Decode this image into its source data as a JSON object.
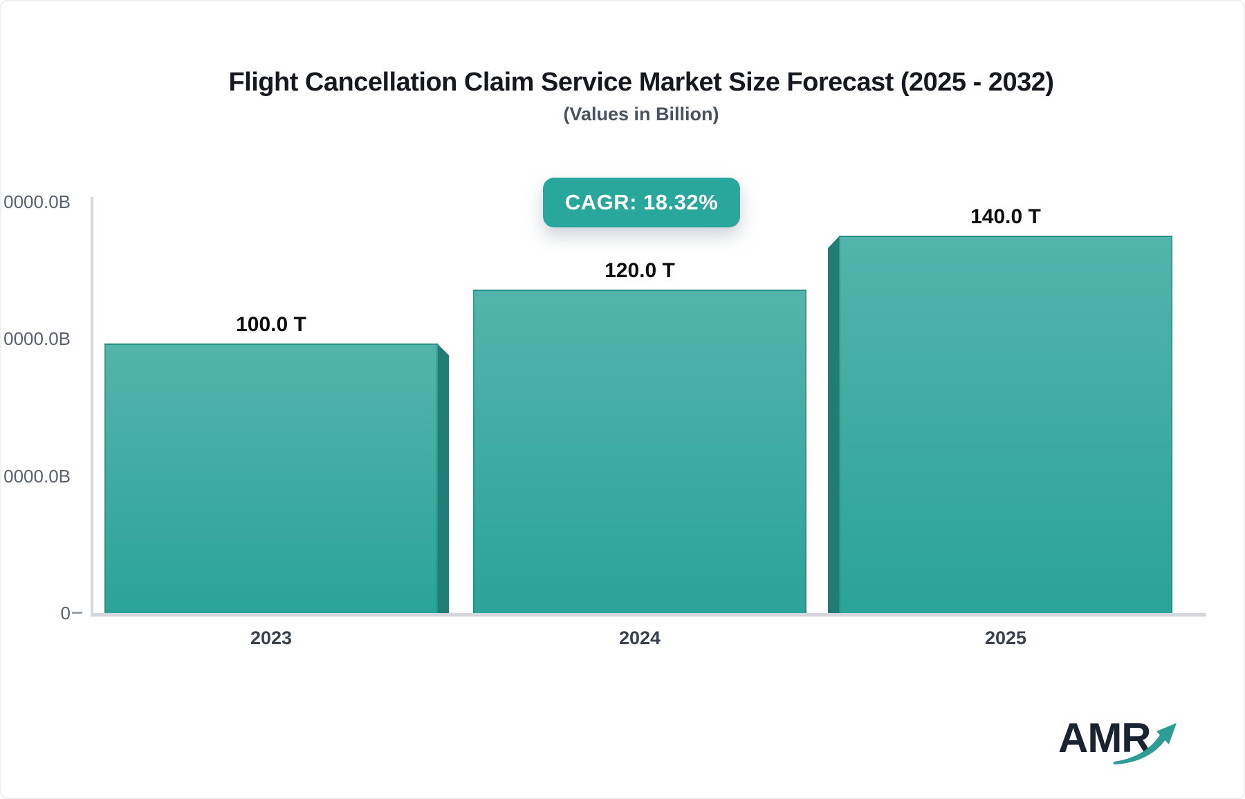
{
  "page": {
    "logo_text": "AMR"
  },
  "colors": {
    "accent_teal": "#2aa79d",
    "bar_gradient_top": "#53b4ab",
    "bar_gradient_bottom": "#2aa399",
    "bar_side": "#1f7d76",
    "axis_line": "#d4d7dd",
    "tick_label": "#5a6270",
    "year_label": "#3a4250",
    "value_label": "#0d0d0d",
    "title_color": "#15181e",
    "subtitle_color": "#49525f",
    "logo_dark": "#1a2430",
    "logo_arrow_teal": "#2d9d96"
  },
  "chart_data": {
    "type": "bar",
    "title": "Flight Cancellation Claim Service Market Size Forecast (2025 - 2032)",
    "subtitle": "(Values in Billion)",
    "cagr_label": "CAGR: 18.32%",
    "cagr_percent": 18.32,
    "categories": [
      "2023",
      "2024",
      "2025"
    ],
    "values": [
      100,
      120,
      140
    ],
    "value_labels": [
      "100.0 T",
      "120.0 T",
      "140.0 T"
    ],
    "y_axis": {
      "range": [
        0,
        155
      ],
      "ticks": [
        {
          "value": 0,
          "label": "0"
        },
        {
          "value": 50,
          "label": "0000.0B"
        },
        {
          "value": 100,
          "label": "0000.0B"
        },
        {
          "value": 150,
          "label": "0000.0B"
        }
      ]
    },
    "gridlines": false,
    "legend": null
  }
}
